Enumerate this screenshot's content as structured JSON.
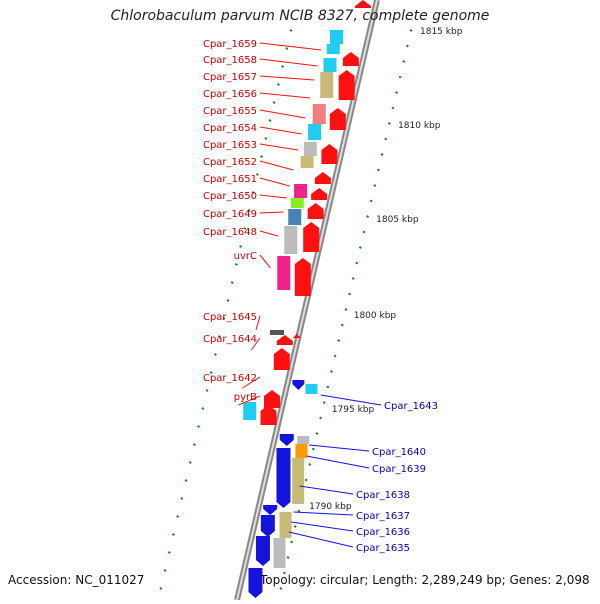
{
  "title": "Chlorobaculum parvum NCIB 8327, complete genome",
  "footer": {
    "accession": "Accession: NC_011027",
    "topology": "Topology: circular; Length: 2,289,249 bp; Genes: 2,098"
  },
  "scale_labels": [
    "1815 kbp",
    "1810 kbp",
    "1805 kbp",
    "1800 kbp",
    "1795 kbp",
    "1790 kbp"
  ],
  "forward_genes": [
    "Cpar_1659",
    "Cpar_1658",
    "Cpar_1657",
    "Cpar_1656",
    "Cpar_1655",
    "Cpar_1654",
    "Cpar_1653",
    "Cpar_1652",
    "Cpar_1651",
    "Cpar_1650",
    "Cpar_1649",
    "Cpar_1648",
    "uvrC",
    "Cpar_1645",
    "Cpar_1644",
    "Cpar_1642",
    "pyrB"
  ],
  "reverse_genes": [
    "Cpar_1643",
    "Cpar_1640",
    "Cpar_1639",
    "Cpar_1638",
    "Cpar_1637",
    "Cpar_1636",
    "Cpar_1635"
  ],
  "colors": {
    "forward_label": "#c80000",
    "reverse_label": "#0000c8",
    "red_gene": "#ff1010",
    "blue_gene": "#1414dd",
    "cyan": "#22ccee",
    "khaki": "#c8bb78",
    "pink": "#f08080",
    "grey": "#bbbbbb",
    "magenta": "#ee2288",
    "green": "#88ee22",
    "steel": "#4682b4",
    "orange": "#ff9900",
    "dark": "#555555",
    "tick": "#118811"
  }
}
